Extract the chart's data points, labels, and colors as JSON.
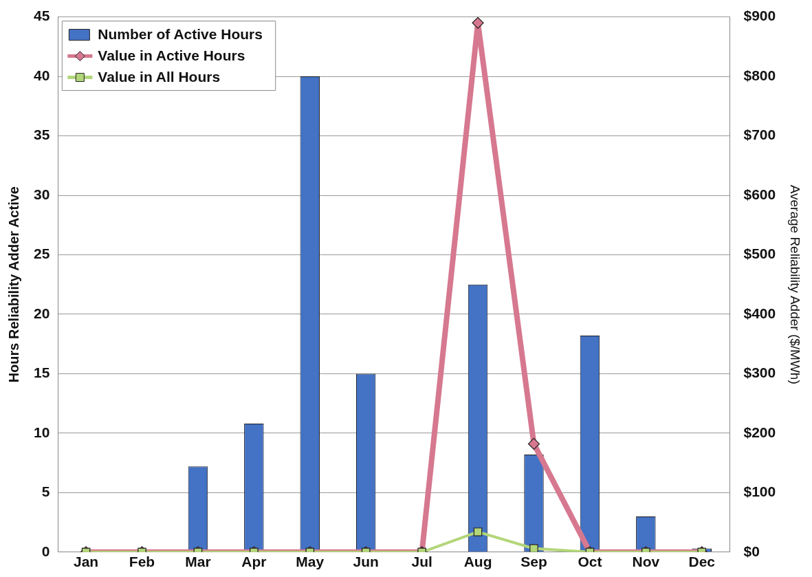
{
  "chart_data": {
    "type": "bar",
    "categories": [
      "Jan",
      "Feb",
      "Mar",
      "Apr",
      "May",
      "Jun",
      "Jul",
      "Aug",
      "Sep",
      "Oct",
      "Nov",
      "Dec"
    ],
    "ylabel": "Hours Reliability Adder Active",
    "y2label": "Average Reliability Adder ($/MWh)",
    "ylim": [
      0,
      45
    ],
    "yticks": [
      0,
      5,
      10,
      15,
      20,
      25,
      30,
      35,
      40,
      45
    ],
    "y2lim": [
      0,
      900
    ],
    "y2ticks": [
      {
        "value": 0,
        "label": "$0"
      },
      {
        "value": 100,
        "label": "$100"
      },
      {
        "value": 200,
        "label": "$200"
      },
      {
        "value": 300,
        "label": "$300"
      },
      {
        "value": 400,
        "label": "$400"
      },
      {
        "value": 500,
        "label": "$500"
      },
      {
        "value": 600,
        "label": "$600"
      },
      {
        "value": 700,
        "label": "$700"
      },
      {
        "value": 800,
        "label": "$800"
      },
      {
        "value": 900,
        "label": "$900"
      }
    ],
    "grid": "y",
    "legend": "top left",
    "series": [
      {
        "name": "Number of Active Hours",
        "color": "#4472c4",
        "values": [
          null,
          0,
          7.2,
          10.8,
          40,
          15,
          0,
          22.5,
          8.2,
          18.2,
          3,
          0.3
        ]
      },
      {
        "name": "Value in Active Hours",
        "type": "line",
        "axis": "y2",
        "color": "#d6788f",
        "marker": "diamond",
        "values": [
          0,
          0,
          0,
          0,
          0,
          0,
          0,
          890,
          182,
          0,
          0,
          0
        ]
      },
      {
        "name": "Value in All Hours",
        "type": "line",
        "axis": "y2",
        "color": "#b3d67a",
        "marker": "square",
        "values": [
          0,
          0,
          0,
          0,
          0,
          0,
          0,
          34,
          6,
          0,
          0,
          0
        ]
      }
    ]
  }
}
